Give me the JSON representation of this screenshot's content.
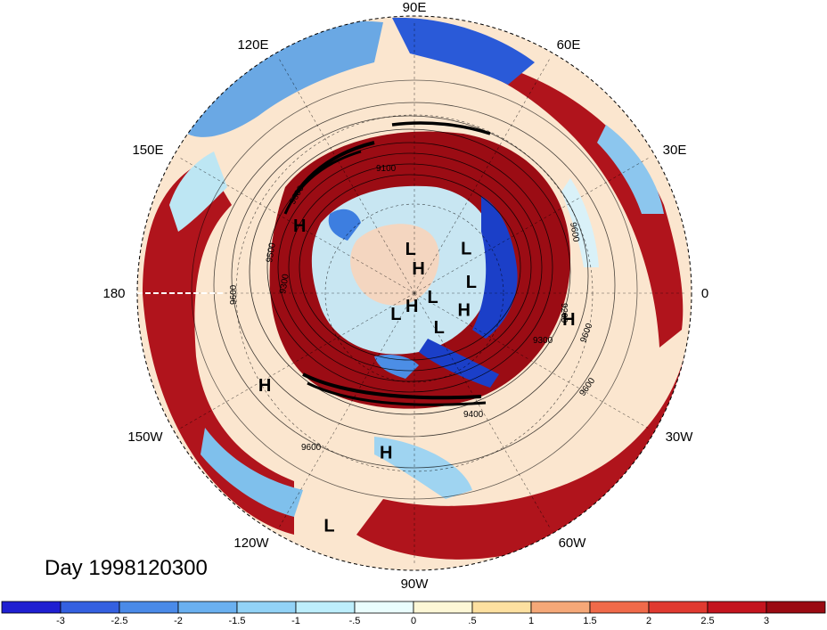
{
  "map": {
    "projection": "north-polar-stereographic",
    "longitude_labels": [
      "90E",
      "60E",
      "30E",
      "0",
      "30W",
      "60W",
      "90W",
      "120W",
      "150W",
      "180",
      "150E",
      "120E"
    ],
    "pressure_systems": [
      {
        "text": "H",
        "lon": 150,
        "lat": 38
      },
      {
        "text": "L",
        "lon": 95,
        "lat": 72
      },
      {
        "text": "H",
        "lon": 80,
        "lat": 80
      },
      {
        "text": "L",
        "lon": 40,
        "lat": 62
      },
      {
        "text": "L",
        "lon": 10,
        "lat": 66
      },
      {
        "text": "L",
        "lon": -15,
        "lat": 82
      },
      {
        "text": "H",
        "lon": -20,
        "lat": 68
      },
      {
        "text": "H",
        "lon": -100,
        "lat": 84
      },
      {
        "text": "L",
        "lon": -130,
        "lat": 78
      },
      {
        "text": "L",
        "lon": -55,
        "lat": 72
      },
      {
        "text": "H",
        "lon": -10,
        "lat": 30
      },
      {
        "text": "H",
        "lon": -148,
        "lat": 24
      },
      {
        "text": "H",
        "lon": -100,
        "lat": 28
      },
      {
        "text": "L",
        "lon": -110,
        "lat": 5
      }
    ],
    "contour_labels": [
      "9100",
      "9600",
      "9500",
      "9600",
      "9300",
      "9600",
      "9300",
      "9200",
      "9600",
      "9400",
      "9600",
      "9600"
    ],
    "colors": {
      "strong_neg": "#1b22c9",
      "neg": "#5aa0e8",
      "weak_neg": "#b8e6f5",
      "neutral": "#fff5d8",
      "weak_pos": "#f2a37a",
      "pos": "#e33b2e",
      "strong_pos": "#a50f16"
    }
  },
  "title": "Day 1998120300",
  "colorbar": {
    "labels": [
      "-3",
      "-2.5",
      "-2",
      "-1.5",
      "-1",
      "-.5",
      "0",
      ".5",
      "1",
      "1.5",
      "2",
      "2.5",
      "3"
    ],
    "colors": [
      "#1f1fd1",
      "#3460e0",
      "#4a8ae8",
      "#6ab0f0",
      "#92d2f6",
      "#bdeefc",
      "#eafdfd",
      "#fdf7d6",
      "#fde0a0",
      "#f5a878",
      "#f06a4a",
      "#e03a30",
      "#c4141e",
      "#9a0a12"
    ]
  }
}
